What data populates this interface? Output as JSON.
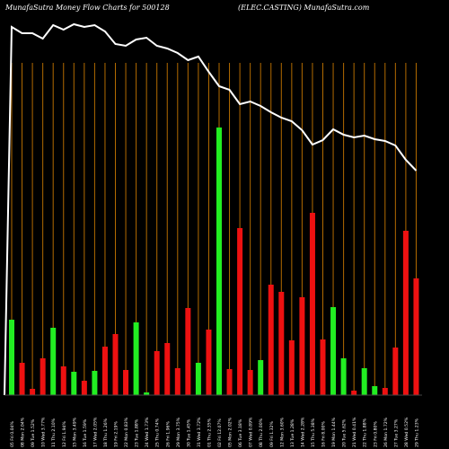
{
  "header": {
    "left": "MunafaSutra  Money Flow  Charts for 500128",
    "right": "(ELEC.CASTING) MunafaSutra.com"
  },
  "chart_data": {
    "type": "bar",
    "title": "MunafaSutra  Money Flow  Charts for 500128",
    "subtitle": "(ELEC.CASTING) MunafaSutra.com",
    "grid": "vertical",
    "colors": {
      "up": "#22ee22",
      "down": "#ee1111",
      "grid": "#b36b00",
      "line": "#ffffff",
      "background": "#000000"
    },
    "categories": [
      "05 Fri 0.04%",
      "08 Mon 2.04%",
      "09 Tue 1.52%",
      "10 Wed 3.77%",
      "11 Thu 2.10%",
      "12 Fri 1.94%",
      "15 Mon 3.49%",
      "16 Tue 1.59%",
      "17 Wed 2.05%",
      "18 Thu 1.26%",
      "19 Fri 2.19%",
      "22 Mon 0.83%",
      "23 Tue 1.88%",
      "24 Wed 1.73%",
      "25 Thu 0.74%",
      "26 Fri 1.96%",
      "29 Mon 3.75%",
      "30 Tue 1.45%",
      "31 Wed 3.72%",
      "01 Thu 2.35%",
      "02 Fri 12.07%",
      "05 Mon 2.02%",
      "06 Tue 3.18%",
      "07 Wed 0.89%",
      "08 Thu 2.00%",
      "09 Fri 1.32%",
      "12 Mon 3.60%",
      "13 Tue 1.28%",
      "14 Wed 2.28%",
      "15 Thu 5.38%",
      "16 Fri 8.00%",
      "19 Mon 1.44%",
      "20 Tue 5.62%",
      "21 Wed 0.41%",
      "22 Thu 1.88%",
      "23 Fri 0.80%",
      "26 Mon 1.72%",
      "27 Tue 3.27%",
      "28 Wed 0.52%",
      "29 Thu 1.23%"
    ],
    "values": [
      84,
      36,
      7,
      41,
      75,
      32,
      26,
      16,
      27,
      54,
      68,
      28,
      81,
      3,
      49,
      58,
      30,
      97,
      36,
      73,
      298,
      29,
      186,
      28,
      39,
      123,
      115,
      61,
      109,
      203,
      62,
      98,
      41,
      5,
      30,
      10,
      8,
      53,
      183,
      130
    ],
    "direction": [
      "up",
      "down",
      "down",
      "down",
      "up",
      "down",
      "up",
      "down",
      "up",
      "down",
      "down",
      "down",
      "up",
      "up",
      "down",
      "down",
      "down",
      "down",
      "up",
      "down",
      "up",
      "down",
      "down",
      "down",
      "up",
      "down",
      "down",
      "down",
      "down",
      "down",
      "down",
      "up",
      "up",
      "down",
      "up",
      "up",
      "down",
      "down",
      "down",
      "down"
    ],
    "line": [
      30,
      37,
      37,
      43,
      28,
      33,
      27,
      30,
      28,
      35,
      49,
      51,
      44,
      42,
      51,
      54,
      59,
      67,
      63,
      80,
      96,
      100,
      116,
      113,
      118,
      125,
      131,
      135,
      145,
      161,
      156,
      144,
      150,
      153,
      151,
      155,
      157,
      162,
      178,
      190
    ]
  }
}
